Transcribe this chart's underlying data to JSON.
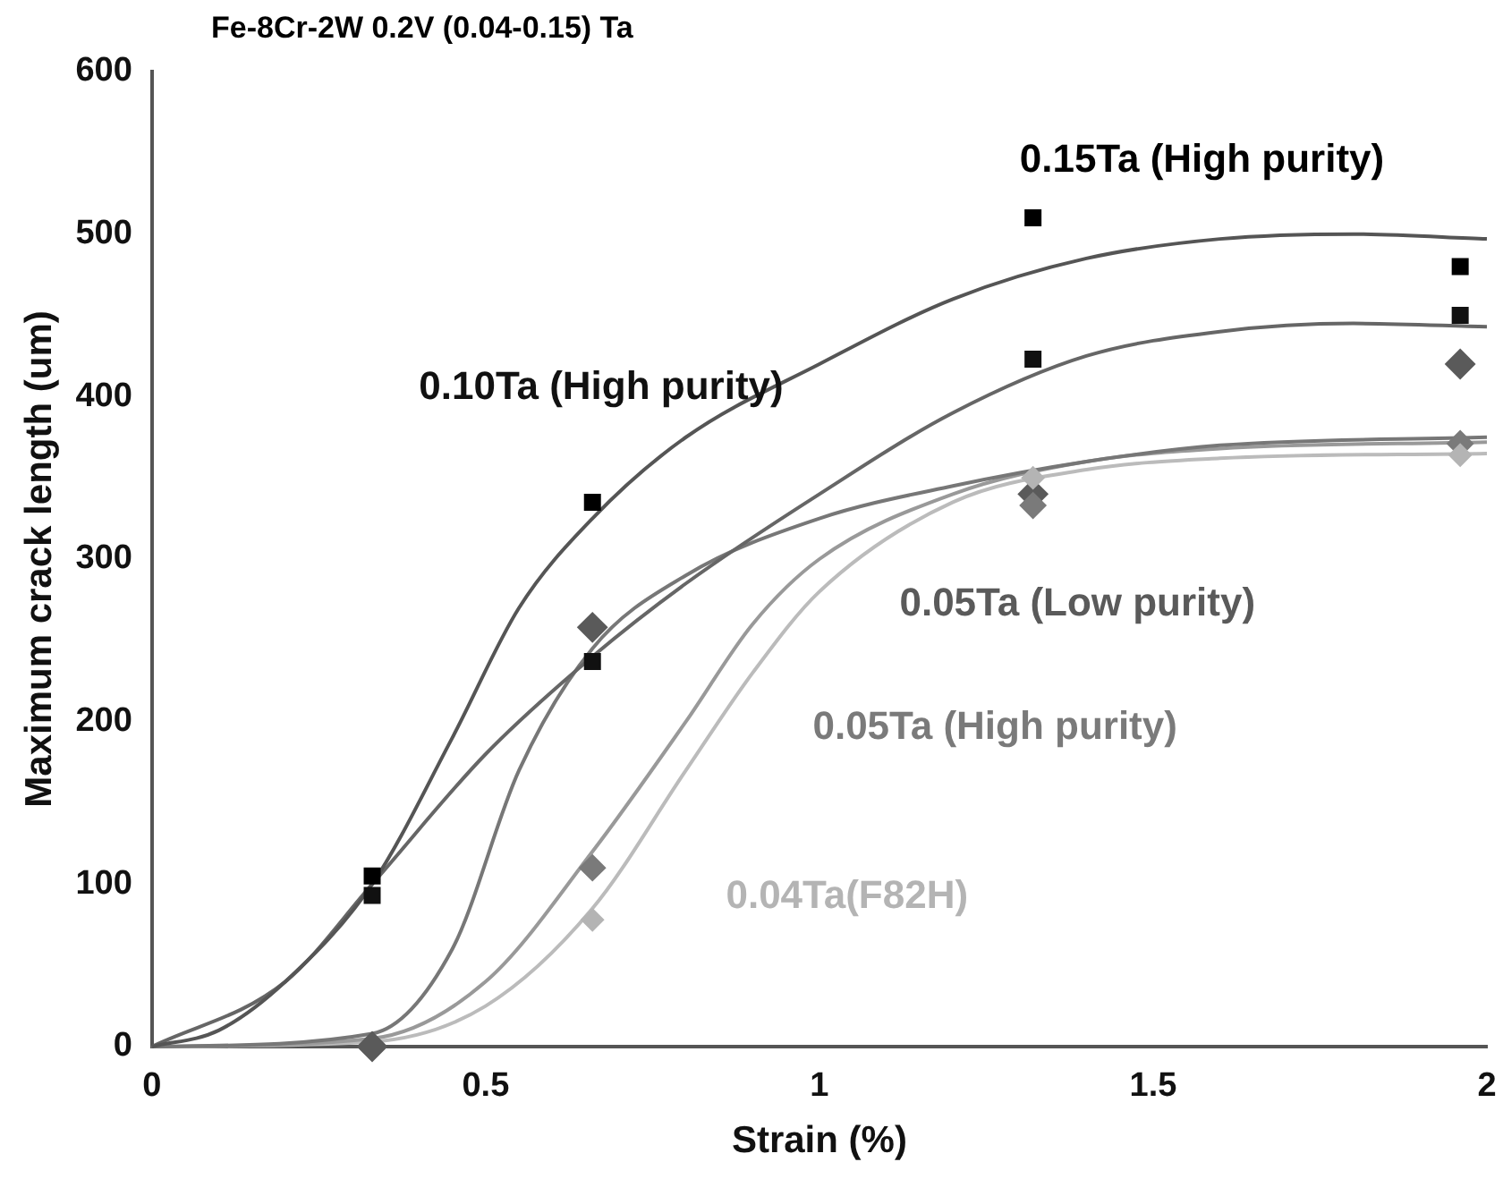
{
  "chart_data": {
    "type": "scatter",
    "title": "Fe-8Cr-2W 0.2V (0.04-0.15) Ta",
    "xlabel": "Strain (%)",
    "ylabel": "Maximum crack length (um)",
    "xlim": [
      0,
      2
    ],
    "xticks": [
      0,
      0.5,
      1,
      1.5,
      2
    ],
    "ylim": [
      0,
      600
    ],
    "yticks": [
      0,
      100,
      200,
      300,
      400,
      500,
      600
    ],
    "grid": false,
    "legend": false,
    "series": [
      {
        "name": "0.15Ta (High purity)",
        "color": "#000000",
        "marker": "square",
        "x": [
          0.33,
          0.66,
          1.32,
          1.96
        ],
        "values": [
          105,
          335,
          510,
          480
        ]
      },
      {
        "name": "0.10Ta (High purity)",
        "color": "#111111",
        "marker": "square",
        "x": [
          0.33,
          0.66,
          1.32,
          1.96
        ],
        "values": [
          93,
          237,
          423,
          450
        ]
      },
      {
        "name": "0.05Ta (Low purity)",
        "color": "#5a5a5a",
        "marker": "diamond",
        "x": [
          0.33,
          0.66,
          1.32,
          1.96
        ],
        "values": [
          0,
          258,
          340,
          420
        ]
      },
      {
        "name": "0.05Ta (High purity)",
        "color": "#7a7a7a",
        "marker": "diamond",
        "x": [
          0.66,
          1.32,
          1.96
        ],
        "values": [
          110,
          333,
          371
        ]
      },
      {
        "name": "0.04Ta(F82H)",
        "color": "#b4b4b4",
        "marker": "diamond",
        "x": [
          0.66,
          1.32,
          1.96
        ],
        "values": [
          78,
          350,
          364
        ]
      },
      {
        "type": "line",
        "color": "#555555",
        "marker": "none",
        "x": [
          0,
          0.1,
          0.2,
          0.33,
          0.45,
          0.55,
          0.66,
          0.8,
          1.0,
          1.2,
          1.4,
          1.6,
          1.8,
          2
        ],
        "values": [
          0,
          10,
          40,
          100,
          190,
          270,
          325,
          375,
          420,
          460,
          485,
          497,
          500,
          497
        ]
      },
      {
        "type": "line",
        "color": "#666666",
        "marker": "none",
        "x": [
          0,
          0.2,
          0.33,
          0.5,
          0.66,
          0.8,
          1.0,
          1.2,
          1.4,
          1.6,
          1.8,
          2
        ],
        "values": [
          0,
          40,
          100,
          180,
          240,
          285,
          340,
          390,
          425,
          440,
          445,
          443
        ]
      },
      {
        "type": "line",
        "color": "#777777",
        "marker": "none",
        "x": [
          0,
          0.33,
          0.45,
          0.55,
          0.66,
          0.8,
          1.0,
          1.2,
          1.4,
          1.6,
          2
        ],
        "values": [
          0,
          8,
          60,
          170,
          245,
          290,
          325,
          345,
          360,
          370,
          375
        ]
      },
      {
        "type": "line",
        "color": "#999999",
        "marker": "none",
        "x": [
          0,
          0.33,
          0.5,
          0.66,
          0.8,
          0.9,
          1.0,
          1.2,
          1.4,
          1.6,
          2
        ],
        "values": [
          0,
          5,
          40,
          120,
          200,
          260,
          300,
          340,
          360,
          368,
          372
        ]
      },
      {
        "type": "line",
        "color": "#bbbbbb",
        "marker": "none",
        "x": [
          0,
          0.33,
          0.5,
          0.66,
          0.8,
          0.9,
          1.0,
          1.2,
          1.4,
          1.6,
          2
        ],
        "values": [
          0,
          3,
          25,
          85,
          170,
          230,
          280,
          335,
          355,
          362,
          365
        ]
      }
    ]
  }
}
